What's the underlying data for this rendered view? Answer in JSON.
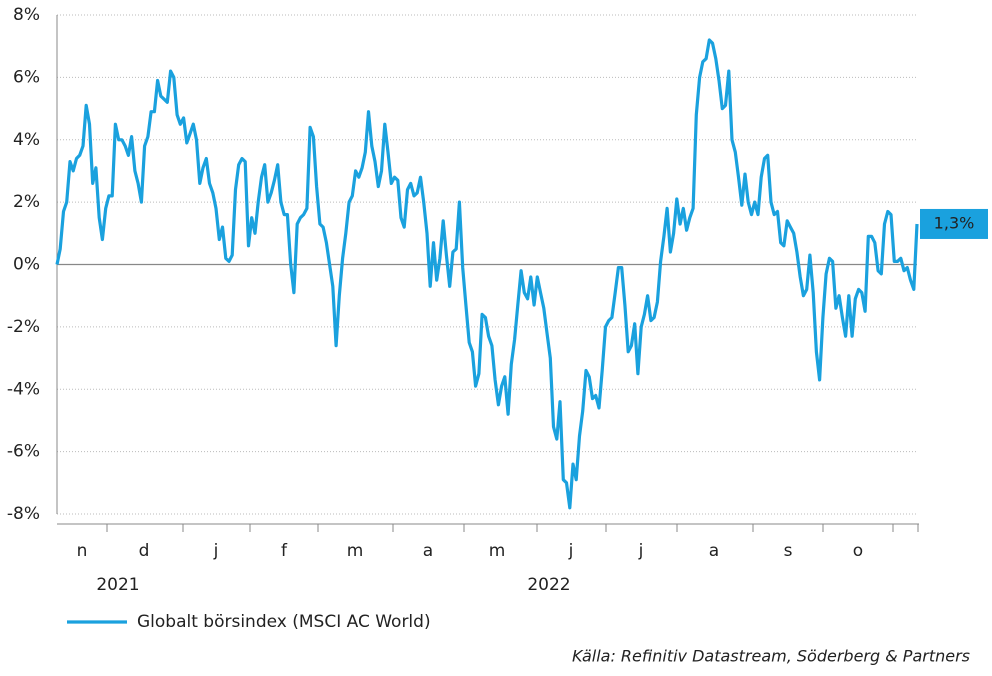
{
  "chart_data": {
    "type": "line",
    "series": [
      {
        "name": "Globalt börsindex (MSCI AC World)",
        "color": "#1aa1de",
        "values": [
          0,
          0.5,
          1.7,
          2.0,
          3.3,
          3.0,
          3.4,
          3.5,
          3.8,
          5.1,
          4.5,
          2.6,
          3.1,
          1.5,
          0.8,
          1.8,
          2.2,
          2.2,
          4.5,
          4.0,
          4.0,
          3.8,
          3.5,
          4.1,
          3.0,
          2.6,
          2.0,
          3.8,
          4.1,
          4.9,
          4.9,
          5.9,
          5.4,
          5.3,
          5.2,
          6.2,
          6.0,
          4.8,
          4.5,
          4.7,
          3.9,
          4.2,
          4.5,
          4.0,
          2.6,
          3.1,
          3.4,
          2.6,
          2.3,
          1.8,
          0.8,
          1.2,
          0.2,
          0.1,
          0.3,
          2.4,
          3.2,
          3.4,
          3.3,
          0.6,
          1.5,
          1.0,
          2.0,
          2.8,
          3.2,
          2.0,
          2.3,
          2.7,
          3.2,
          2.0,
          1.6,
          1.6,
          0.0,
          -0.9,
          1.3,
          1.5,
          1.6,
          1.8,
          4.4,
          4.1,
          2.5,
          1.3,
          1.2,
          0.7,
          0.0,
          -0.7,
          -2.6,
          -1.0,
          0.2,
          1.0,
          2.0,
          2.2,
          3.0,
          2.8,
          3.1,
          3.6,
          4.9,
          3.8,
          3.3,
          2.5,
          3.0,
          4.5,
          3.6,
          2.6,
          2.8,
          2.7,
          1.5,
          1.2,
          2.4,
          2.6,
          2.2,
          2.3,
          2.8,
          2.0,
          1.0,
          -0.7,
          0.7,
          -0.5,
          0.2,
          1.4,
          0.3,
          -0.7,
          0.4,
          0.5,
          2.0,
          -0.1,
          -1.3,
          -2.5,
          -2.8,
          -3.9,
          -3.5,
          -1.6,
          -1.7,
          -2.3,
          -2.6,
          -3.7,
          -4.5,
          -3.9,
          -3.6,
          -4.8,
          -3.2,
          -2.4,
          -1.3,
          -0.2,
          -0.9,
          -1.1,
          -0.4,
          -1.3,
          -0.4,
          -0.9,
          -1.4,
          -2.2,
          -3.0,
          -5.2,
          -5.6,
          -4.4,
          -6.9,
          -7.0,
          -7.8,
          -6.4,
          -6.9,
          -5.5,
          -4.7,
          -3.4,
          -3.6,
          -4.3,
          -4.2,
          -4.6,
          -3.4,
          -2.0,
          -1.8,
          -1.7,
          -0.9,
          -0.1,
          -0.1,
          -1.3,
          -2.8,
          -2.6,
          -1.9,
          -3.5,
          -2.0,
          -1.6,
          -1.0,
          -1.8,
          -1.7,
          -1.2,
          0.1,
          0.9,
          1.8,
          0.4,
          1.0,
          2.1,
          1.3,
          1.8,
          1.1,
          1.5,
          1.8,
          4.8,
          6.0,
          6.5,
          6.6,
          7.2,
          7.1,
          6.6,
          5.9,
          5.0,
          5.1,
          6.2,
          4.0,
          3.6,
          2.8,
          1.9,
          2.9,
          2.0,
          1.6,
          2.0,
          1.6,
          2.8,
          3.4,
          3.5,
          2.0,
          1.6,
          1.7,
          0.7,
          0.6,
          1.4,
          1.2,
          1.0,
          0.4,
          -0.4,
          -1.0,
          -0.8,
          0.3,
          -0.9,
          -2.8,
          -3.7,
          -1.7,
          -0.3,
          0.2,
          0.1,
          -1.4,
          -1.0,
          -1.7,
          -2.3,
          -1.0,
          -2.3,
          -1.1,
          -0.8,
          -0.9,
          -1.5,
          0.9,
          0.9,
          0.7,
          -0.2,
          -0.3,
          1.3,
          1.7,
          1.6,
          0.1,
          0.1,
          0.2,
          -0.2,
          -0.1,
          -0.5,
          -0.8,
          1.3
        ],
        "end_label": "1,3%"
      }
    ],
    "ylim": [
      -8,
      8
    ],
    "yticks": [
      {
        "value": -8,
        "label": "-8%"
      },
      {
        "value": -6,
        "label": "-6%"
      },
      {
        "value": -4,
        "label": "-4%"
      },
      {
        "value": -2,
        "label": "-2%"
      },
      {
        "value": 0,
        "label": "0%"
      },
      {
        "value": 2,
        "label": "2%"
      },
      {
        "value": 4,
        "label": "4%"
      },
      {
        "value": 6,
        "label": "6%"
      },
      {
        "value": 8,
        "label": "8%"
      }
    ],
    "months": [
      "n",
      "d",
      "j",
      "f",
      "m",
      "a",
      "m",
      "j",
      "j",
      "a",
      "s",
      "o"
    ],
    "years": [
      "2021",
      "2022"
    ],
    "grid": true,
    "source": "Källa: Refinitiv Datastream, Söderberg & Partners"
  }
}
